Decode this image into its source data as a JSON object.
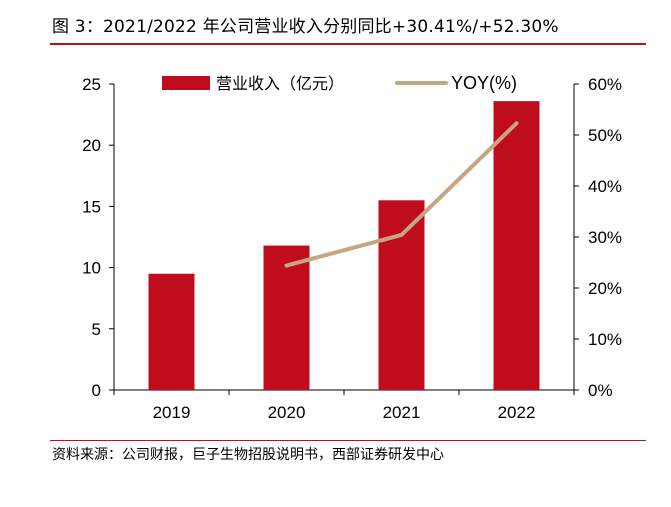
{
  "figure": {
    "title": "图 3：2021/2022 年公司营业收入分别同比+30.41%/+52.30%",
    "source": "资料来源：公司财报，巨子生物招股说明书，西部证券研发中心"
  },
  "colors": {
    "bar": "#c00d1e",
    "line": "#c7a482",
    "rule": "#b5121b"
  },
  "chart_data": {
    "type": "bar",
    "categories": [
      "2019",
      "2020",
      "2021",
      "2022"
    ],
    "series": [
      {
        "name": "营业收入（亿元）",
        "type": "bar",
        "axis": "left",
        "values": [
          9.5,
          11.8,
          15.5,
          23.6
        ]
      },
      {
        "name": "YOY(%)",
        "type": "line",
        "axis": "right",
        "values": [
          null,
          24.4,
          30.41,
          52.3
        ]
      }
    ],
    "y_left": {
      "min": 0,
      "max": 25,
      "step": 5,
      "ticks": [
        "0",
        "5",
        "10",
        "15",
        "20",
        "25"
      ]
    },
    "y_right": {
      "min": 0,
      "max": 60,
      "step": 10,
      "ticks": [
        "0%",
        "10%",
        "20%",
        "30%",
        "40%",
        "50%",
        "60%"
      ]
    },
    "legend": {
      "placement": "top"
    },
    "grid": false
  }
}
